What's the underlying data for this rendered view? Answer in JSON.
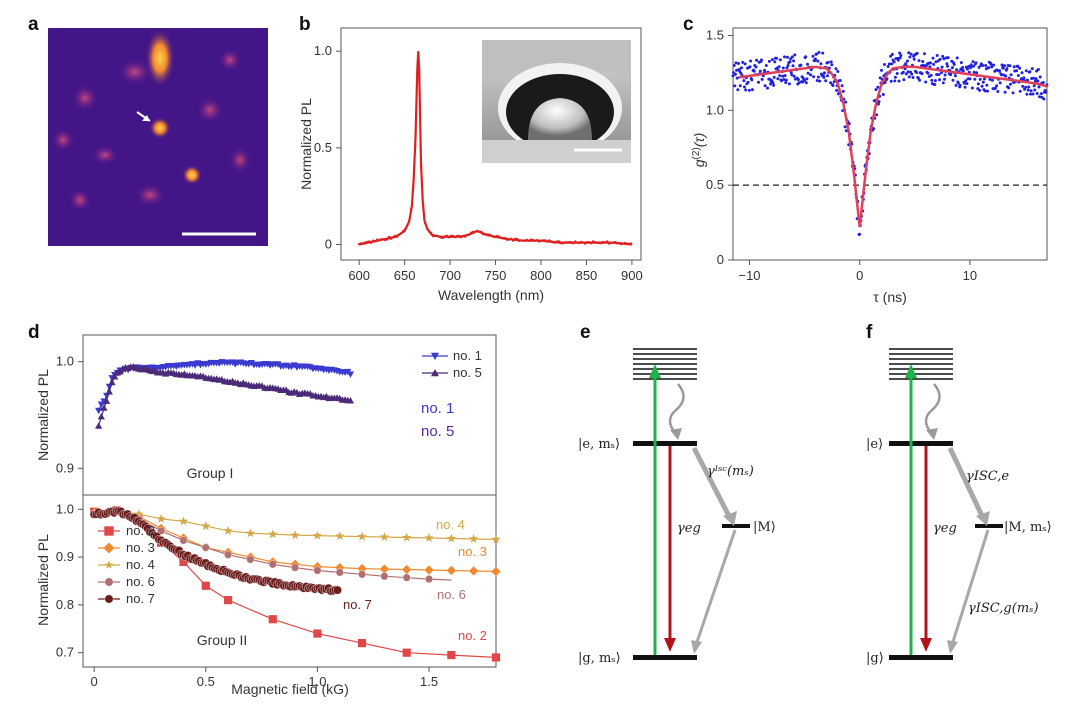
{
  "panels": {
    "a": {
      "label": "a",
      "colormap": [
        "#2b0f6b",
        "#4a0f8c",
        "#8a1d8c",
        "#d0456a",
        "#f28a2e",
        "#fbd54a"
      ]
    },
    "b": {
      "label": "b",
      "ylabel": "Normalized PL",
      "xlabel": "Wavelength (nm)",
      "xticks": [
        "600",
        "650",
        "700",
        "750",
        "800",
        "850",
        "900"
      ],
      "yticks": [
        "0",
        "0.5",
        "1.0"
      ]
    },
    "c": {
      "label": "c",
      "ylabel_main": "g",
      "ylabel_sup": "(2)",
      "ylabel_arg": "(τ)",
      "xlabel": "τ (ns)",
      "xticks": [
        "−10",
        "0",
        "10"
      ],
      "yticks": [
        "0",
        "0.5",
        "1.0",
        "1.5"
      ]
    },
    "d": {
      "label": "d",
      "ylabel_top": "Normalized PL",
      "ylabel_bottom": "Normalized PL",
      "xlabel": "Magnetic field (kG)",
      "xticks": [
        "0",
        "0.5",
        "1.0",
        "1.5"
      ],
      "yticks_top": [
        "0.9",
        "1.0"
      ],
      "yticks_bottom": [
        "0.7",
        "0.8",
        "0.9",
        "1.0"
      ],
      "group1": "Group I",
      "group2": "Group II"
    },
    "e": {
      "label": "e",
      "excited": "|e, mₛ⟩",
      "ground": "|g, mₛ⟩",
      "meta": "|M⟩",
      "isc": "γᴵˢᶜ(mₛ)",
      "eg": "γeg"
    },
    "f": {
      "label": "f",
      "excited": "|e⟩",
      "ground": "|g⟩",
      "meta": "|M, mₛ⟩",
      "isc_e": "γISC,e",
      "isc_g": "γISC,g(mₛ)",
      "eg": "γeg"
    }
  },
  "chart_data": [
    {
      "panel": "b",
      "type": "line",
      "xlabel": "Wavelength (nm)",
      "ylabel": "Normalized PL",
      "xlim": [
        580,
        910
      ],
      "ylim": [
        -0.08,
        1.12
      ],
      "x": [
        600,
        620,
        640,
        650,
        655,
        658,
        660,
        662,
        663,
        664,
        665,
        666,
        667,
        668,
        670,
        672,
        675,
        680,
        690,
        700,
        710,
        720,
        730,
        740,
        750,
        760,
        780,
        800,
        820,
        840,
        860,
        880,
        900
      ],
      "y": [
        0.0,
        0.02,
        0.04,
        0.07,
        0.12,
        0.2,
        0.34,
        0.55,
        0.75,
        0.92,
        1.0,
        0.9,
        0.66,
        0.42,
        0.22,
        0.12,
        0.08,
        0.05,
        0.04,
        0.04,
        0.04,
        0.05,
        0.07,
        0.05,
        0.04,
        0.03,
        0.02,
        0.02,
        0.01,
        0.01,
        0.01,
        0.01,
        0.0
      ],
      "color": "#e02020"
    },
    {
      "panel": "c",
      "type": "scatter",
      "xlabel": "τ (ns)",
      "ylabel": "g(2)(τ)",
      "xlim": [
        -11.5,
        17
      ],
      "ylim": [
        0,
        1.55
      ],
      "x": [
        -11,
        -10,
        -9,
        -8,
        -7,
        -6,
        -5,
        -4,
        -3,
        -2.5,
        -2,
        -1.5,
        -1,
        -0.5,
        0,
        0.5,
        1,
        1.5,
        2,
        2.5,
        3,
        4,
        5,
        6,
        7,
        8,
        9,
        10,
        11,
        12,
        13,
        14,
        15,
        16,
        17
      ],
      "fit": [
        1.22,
        1.23,
        1.24,
        1.25,
        1.26,
        1.27,
        1.28,
        1.29,
        1.28,
        1.24,
        1.18,
        1.05,
        0.86,
        0.56,
        0.22,
        0.56,
        0.86,
        1.05,
        1.18,
        1.24,
        1.28,
        1.29,
        1.29,
        1.28,
        1.27,
        1.26,
        1.25,
        1.24,
        1.23,
        1.22,
        1.21,
        1.2,
        1.19,
        1.18,
        1.16
      ],
      "threshold": 0.5,
      "point_color": "#2222dd",
      "fit_color": "#e0405a"
    },
    {
      "panel": "d",
      "group": "Group I",
      "type": "line",
      "xlabel": "Magnetic field (kG)",
      "ylabel": "Normalized PL",
      "xlim": [
        -0.05,
        1.8
      ],
      "ylim": [
        0.875,
        1.025
      ],
      "series": [
        {
          "name": "no. 1",
          "color": "#3a3ad0",
          "marker": "triangle-down",
          "x": [
            0.02,
            0.05,
            0.08,
            0.1,
            0.15,
            0.2,
            0.3,
            0.4,
            0.5,
            0.6,
            0.7,
            0.8,
            0.9,
            1.0,
            1.1,
            1.15
          ],
          "y": [
            0.955,
            0.965,
            0.985,
            0.99,
            0.993,
            0.994,
            0.995,
            0.997,
            0.998,
            0.999,
            0.998,
            0.997,
            0.996,
            0.994,
            0.991,
            0.989
          ]
        },
        {
          "name": "no. 5",
          "color": "#4b2a78",
          "marker": "triangle-up",
          "x": [
            0.02,
            0.05,
            0.08,
            0.1,
            0.15,
            0.2,
            0.3,
            0.4,
            0.5,
            0.6,
            0.7,
            0.8,
            0.9,
            1.0,
            1.1,
            1.15
          ],
          "y": [
            0.94,
            0.96,
            0.98,
            0.99,
            0.995,
            0.994,
            0.99,
            0.988,
            0.985,
            0.982,
            0.978,
            0.975,
            0.971,
            0.968,
            0.965,
            0.964
          ]
        }
      ]
    },
    {
      "panel": "d",
      "group": "Group II",
      "type": "line",
      "xlabel": "Magnetic field (kG)",
      "ylabel": "Normalized PL",
      "xlim": [
        -0.05,
        1.8
      ],
      "ylim": [
        0.67,
        1.03
      ],
      "series": [
        {
          "name": "no. 2",
          "color": "#e04848",
          "marker": "square",
          "x": [
            0.0,
            0.1,
            0.2,
            0.3,
            0.4,
            0.5,
            0.6,
            0.8,
            1.0,
            1.2,
            1.4,
            1.6,
            1.8
          ],
          "y": [
            0.995,
            0.998,
            0.98,
            0.93,
            0.89,
            0.84,
            0.81,
            0.77,
            0.74,
            0.72,
            0.7,
            0.695,
            0.69
          ]
        },
        {
          "name": "no. 3",
          "color": "#f08a30",
          "marker": "diamond",
          "x": [
            0.0,
            0.1,
            0.2,
            0.3,
            0.4,
            0.5,
            0.6,
            0.7,
            0.8,
            0.9,
            1.0,
            1.1,
            1.2,
            1.3,
            1.4,
            1.5,
            1.6,
            1.7,
            1.8
          ],
          "y": [
            0.99,
            0.995,
            0.985,
            0.96,
            0.94,
            0.92,
            0.91,
            0.9,
            0.89,
            0.885,
            0.88,
            0.878,
            0.876,
            0.875,
            0.874,
            0.873,
            0.872,
            0.871,
            0.87
          ]
        },
        {
          "name": "no. 4",
          "color": "#d4a84a",
          "marker": "star",
          "x": [
            0.0,
            0.1,
            0.2,
            0.3,
            0.4,
            0.5,
            0.6,
            0.7,
            0.8,
            0.9,
            1.0,
            1.1,
            1.2,
            1.3,
            1.4,
            1.5,
            1.6,
            1.7,
            1.8
          ],
          "y": [
            0.995,
            0.998,
            0.99,
            0.98,
            0.975,
            0.965,
            0.955,
            0.95,
            0.948,
            0.946,
            0.945,
            0.944,
            0.943,
            0.942,
            0.941,
            0.94,
            0.939,
            0.938,
            0.937
          ]
        },
        {
          "name": "no. 6",
          "color": "#b07070",
          "marker": "circle",
          "x": [
            0.0,
            0.1,
            0.2,
            0.3,
            0.4,
            0.5,
            0.6,
            0.7,
            0.8,
            0.9,
            1.0,
            1.1,
            1.2,
            1.3,
            1.4,
            1.5,
            1.6
          ],
          "y": [
            0.99,
            0.995,
            0.98,
            0.955,
            0.935,
            0.92,
            0.905,
            0.895,
            0.885,
            0.878,
            0.872,
            0.868,
            0.864,
            0.86,
            0.857,
            0.854,
            0.852
          ]
        },
        {
          "name": "no. 7",
          "color": "#6b1c1c",
          "marker": "circle",
          "x": [
            0.0,
            0.05,
            0.1,
            0.15,
            0.2,
            0.25,
            0.3,
            0.35,
            0.4,
            0.45,
            0.5,
            0.55,
            0.6,
            0.65,
            0.7,
            0.75,
            0.8,
            0.85,
            0.9,
            0.95,
            1.0,
            1.05,
            1.1
          ],
          "y": [
            0.99,
            0.992,
            0.995,
            0.99,
            0.975,
            0.955,
            0.935,
            0.92,
            0.905,
            0.895,
            0.885,
            0.875,
            0.868,
            0.86,
            0.855,
            0.85,
            0.846,
            0.843,
            0.84,
            0.837,
            0.835,
            0.832,
            0.83
          ]
        }
      ]
    }
  ]
}
